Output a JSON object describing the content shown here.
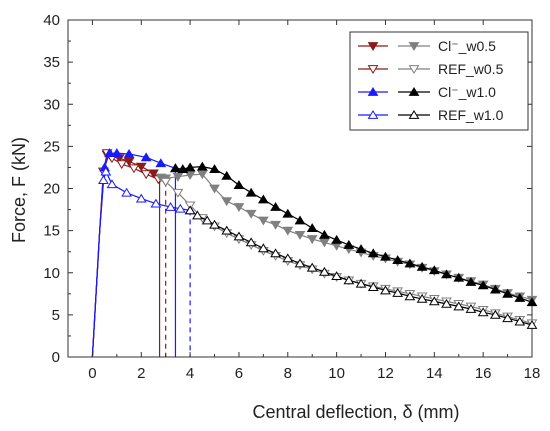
{
  "chart_data": {
    "type": "line",
    "xlabel": "Central deflection, δ (mm)",
    "ylabel": "Force, F (kN)",
    "xlim": [
      -1,
      18
    ],
    "ylim": [
      0,
      40
    ],
    "xticks": [
      "0",
      "2",
      "4",
      "6",
      "8",
      "10",
      "12",
      "14",
      "16",
      "18"
    ],
    "yticks": [
      "0",
      "5",
      "10",
      "15",
      "20",
      "25",
      "30",
      "35",
      "40"
    ],
    "grid": false,
    "legend_position": "top-right",
    "series": [
      {
        "name": "Cl⁻_w0.5",
        "color": "#8b1a1a",
        "marker": "triangle-down-filled",
        "points": [
          [
            0,
            0
          ],
          [
            0.3,
            15
          ],
          [
            0.45,
            22
          ],
          [
            0.6,
            24
          ],
          [
            0.75,
            23.8
          ],
          [
            1.1,
            23.6
          ],
          [
            1.5,
            23.2
          ],
          [
            2.0,
            22.6
          ],
          [
            2.5,
            21.8
          ],
          [
            2.75,
            21.2
          ]
        ],
        "drop_line": {
          "x": 2.75,
          "style": "solid"
        }
      },
      {
        "name": "REF_w0.5",
        "color": "#8b1a1a",
        "marker": "triangle-down-open",
        "points": [
          [
            0,
            0
          ],
          [
            0.3,
            15
          ],
          [
            0.45,
            22
          ],
          [
            0.6,
            24.2
          ],
          [
            0.8,
            23.6
          ],
          [
            1.2,
            22.9
          ],
          [
            1.7,
            22.4
          ],
          [
            2.2,
            21.7
          ],
          [
            2.7,
            21.1
          ],
          [
            3.0,
            20.8
          ]
        ],
        "drop_line": {
          "x": 3.0,
          "style": "dashed"
        }
      },
      {
        "name": "Cl⁻_w1.0",
        "color": "#1a1aff",
        "marker": "triangle-up-filled",
        "points": [
          [
            0,
            0
          ],
          [
            0.3,
            15
          ],
          [
            0.5,
            22.5
          ],
          [
            0.7,
            24.2
          ],
          [
            1.0,
            24.2
          ],
          [
            1.5,
            24.1
          ],
          [
            2.2,
            23.7
          ],
          [
            2.8,
            23.0
          ],
          [
            3.4,
            22.4
          ]
        ],
        "drop_line": {
          "x": 3.4,
          "style": "solid"
        }
      },
      {
        "name": "REF_w1.0",
        "color": "#1a1aff",
        "marker": "triangle-up-open",
        "points": [
          [
            0,
            0
          ],
          [
            0.3,
            15
          ],
          [
            0.45,
            21
          ],
          [
            0.55,
            22
          ],
          [
            0.8,
            20.5
          ],
          [
            1.4,
            19.5
          ],
          [
            2.0,
            18.8
          ],
          [
            2.6,
            18.2
          ],
          [
            3.2,
            17.8
          ],
          [
            3.6,
            17.6
          ],
          [
            4.0,
            17.4
          ]
        ],
        "drop_line": {
          "x": 4.0,
          "style": "dashed"
        }
      },
      {
        "name": "Cl⁻_w0.5 (post-peak)",
        "color": "#808080",
        "marker": "triangle-down-filled",
        "points": [
          [
            2.8,
            21.3
          ],
          [
            3.0,
            21.2
          ],
          [
            3.5,
            21.4
          ],
          [
            4.0,
            21.6
          ],
          [
            4.5,
            21.7
          ],
          [
            5.0,
            20.0
          ],
          [
            5.5,
            18.5
          ],
          [
            6.0,
            17.8
          ],
          [
            6.5,
            17.0
          ],
          [
            7.0,
            16.2
          ],
          [
            7.5,
            15.7
          ],
          [
            8.0,
            15.0
          ],
          [
            8.5,
            14.5
          ],
          [
            9.0,
            14.0
          ],
          [
            9.5,
            13.6
          ],
          [
            10.0,
            13.2
          ],
          [
            10.5,
            12.8
          ],
          [
            11.0,
            12.4
          ],
          [
            11.5,
            12.0
          ],
          [
            12.0,
            11.7
          ],
          [
            12.5,
            11.3
          ],
          [
            13.0,
            11.0
          ],
          [
            13.5,
            10.6
          ],
          [
            14.0,
            10.2
          ],
          [
            14.5,
            9.8
          ],
          [
            15.0,
            9.4
          ],
          [
            15.5,
            9.0
          ],
          [
            16.0,
            8.6
          ],
          [
            16.5,
            8.1
          ],
          [
            17.0,
            7.6
          ],
          [
            17.5,
            7.2
          ],
          [
            18.0,
            6.8
          ]
        ]
      },
      {
        "name": "REF_w0.5 (post-peak)",
        "color": "#808080",
        "marker": "triangle-down-open",
        "points": [
          [
            3.0,
            20.8
          ],
          [
            3.5,
            19.5
          ],
          [
            4.0,
            18.0
          ],
          [
            4.5,
            16.5
          ],
          [
            5.0,
            15.5
          ],
          [
            5.5,
            14.7
          ],
          [
            6.0,
            14.0
          ],
          [
            6.5,
            13.3
          ],
          [
            7.0,
            12.6
          ],
          [
            7.5,
            12.0
          ],
          [
            8.0,
            11.4
          ],
          [
            8.5,
            10.9
          ],
          [
            9.0,
            10.4
          ],
          [
            9.5,
            9.9
          ],
          [
            10.0,
            9.5
          ],
          [
            10.5,
            9.1
          ],
          [
            11.0,
            8.7
          ],
          [
            11.5,
            8.4
          ],
          [
            12.0,
            8.1
          ],
          [
            12.5,
            7.8
          ],
          [
            13.0,
            7.5
          ],
          [
            13.5,
            7.2
          ],
          [
            14.0,
            6.9
          ],
          [
            14.5,
            6.6
          ],
          [
            15.0,
            6.3
          ],
          [
            15.5,
            6.0
          ],
          [
            16.0,
            5.6
          ],
          [
            16.5,
            5.2
          ],
          [
            17.0,
            4.8
          ],
          [
            17.5,
            4.4
          ],
          [
            18.0,
            4.0
          ]
        ]
      },
      {
        "name": "Cl⁻_w1.0 (post-peak)",
        "color": "#000000",
        "marker": "triangle-up-filled",
        "points": [
          [
            3.4,
            22.4
          ],
          [
            3.7,
            22.3
          ],
          [
            4.0,
            22.5
          ],
          [
            4.5,
            22.6
          ],
          [
            5.0,
            22.3
          ],
          [
            5.5,
            21.5
          ],
          [
            6.0,
            20.4
          ],
          [
            6.5,
            19.5
          ],
          [
            7.0,
            18.7
          ],
          [
            7.5,
            17.8
          ],
          [
            8.0,
            17.0
          ],
          [
            8.5,
            16.2
          ],
          [
            9.0,
            15.3
          ],
          [
            9.5,
            14.5
          ],
          [
            10.0,
            13.9
          ],
          [
            10.5,
            13.3
          ],
          [
            11.0,
            12.8
          ],
          [
            11.5,
            12.3
          ],
          [
            12.0,
            11.9
          ],
          [
            12.5,
            11.5
          ],
          [
            13.0,
            11.1
          ],
          [
            13.5,
            10.7
          ],
          [
            14.0,
            10.3
          ],
          [
            14.5,
            9.8
          ],
          [
            15.0,
            9.4
          ],
          [
            15.5,
            8.9
          ],
          [
            16.0,
            8.5
          ],
          [
            16.5,
            8.0
          ],
          [
            17.0,
            7.5
          ],
          [
            17.5,
            7.0
          ],
          [
            18.0,
            6.5
          ]
        ]
      },
      {
        "name": "REF_w1.0 (post-peak)",
        "color": "#000000",
        "marker": "triangle-up-open",
        "points": [
          [
            4.0,
            17.4
          ],
          [
            4.3,
            16.8
          ],
          [
            4.7,
            16.2
          ],
          [
            5.0,
            15.7
          ],
          [
            5.5,
            15.0
          ],
          [
            6.0,
            14.3
          ],
          [
            6.5,
            13.6
          ],
          [
            7.0,
            12.9
          ],
          [
            7.5,
            12.3
          ],
          [
            8.0,
            11.7
          ],
          [
            8.5,
            11.1
          ],
          [
            9.0,
            10.6
          ],
          [
            9.5,
            10.1
          ],
          [
            10.0,
            9.6
          ],
          [
            10.5,
            9.1
          ],
          [
            11.0,
            8.7
          ],
          [
            11.5,
            8.3
          ],
          [
            12.0,
            7.9
          ],
          [
            12.5,
            7.6
          ],
          [
            13.0,
            7.2
          ],
          [
            13.5,
            6.9
          ],
          [
            14.0,
            6.6
          ],
          [
            14.5,
            6.3
          ],
          [
            15.0,
            6.0
          ],
          [
            15.5,
            5.7
          ],
          [
            16.0,
            5.3
          ],
          [
            16.5,
            5.0
          ],
          [
            17.0,
            4.6
          ],
          [
            17.5,
            4.2
          ],
          [
            18.0,
            3.8
          ]
        ]
      }
    ],
    "legend": [
      {
        "label": "Cl⁻_w0.5",
        "left_color": "#8b1a1a",
        "right_color": "#808080",
        "marker": "triangle-down-filled"
      },
      {
        "label": "REF_w0.5",
        "left_color": "#8b1a1a",
        "right_color": "#808080",
        "marker": "triangle-down-open"
      },
      {
        "label": "Cl⁻_w1.0",
        "left_color": "#1a1aff",
        "right_color": "#000000",
        "marker": "triangle-up-filled"
      },
      {
        "label": "REF_w1.0",
        "left_color": "#1a1aff",
        "right_color": "#000000",
        "marker": "triangle-up-open"
      }
    ]
  }
}
